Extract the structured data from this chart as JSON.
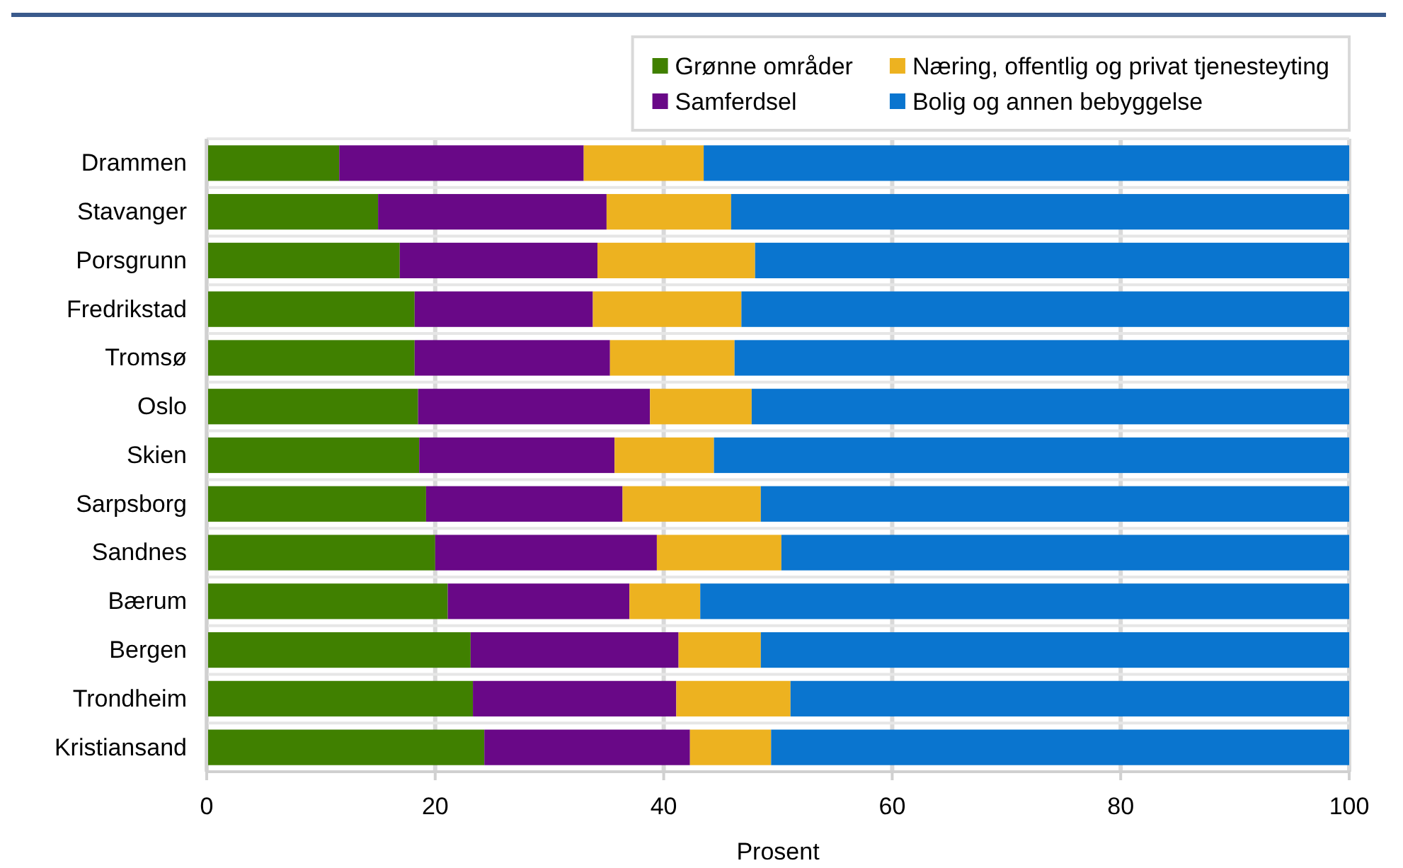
{
  "chart_data": {
    "type": "bar",
    "orientation": "horizontal",
    "stacked": true,
    "categories": [
      "Drammen",
      "Stavanger",
      "Porsgrunn",
      "Fredrikstad",
      "Tromsø",
      "Oslo",
      "Skien",
      "Sarpsborg",
      "Sandnes",
      "Bærum",
      "Bergen",
      "Trondheim",
      "Kristiansand"
    ],
    "series": [
      {
        "name": "Grønne områder",
        "color": "#408000",
        "values": [
          11.6,
          15.0,
          16.9,
          18.2,
          18.2,
          18.5,
          18.6,
          19.2,
          20.0,
          21.1,
          23.1,
          23.3,
          24.3
        ]
      },
      {
        "name": "Samferdsel",
        "color": "#690887",
        "values": [
          21.4,
          20.0,
          17.3,
          15.6,
          17.1,
          20.3,
          17.1,
          17.2,
          19.4,
          15.9,
          18.2,
          17.8,
          18.0
        ]
      },
      {
        "name": "Næring, offentlig og privat tjenesteyting",
        "color": "#edb220",
        "values": [
          10.5,
          10.9,
          13.8,
          13.0,
          10.9,
          8.9,
          8.7,
          12.1,
          10.9,
          6.2,
          7.2,
          10.0,
          7.1
        ]
      },
      {
        "name": "Bolig og annen bebyggelse",
        "color": "#0a75cf",
        "values": [
          56.5,
          54.1,
          52.0,
          53.2,
          53.8,
          52.3,
          55.6,
          51.5,
          49.7,
          56.8,
          51.5,
          48.9,
          50.6
        ]
      }
    ],
    "xlim": [
      0,
      100
    ],
    "xticks": [
      0,
      20,
      40,
      60,
      80,
      100
    ],
    "xlabel": "Prosent",
    "grid": true,
    "legend": "top right"
  }
}
